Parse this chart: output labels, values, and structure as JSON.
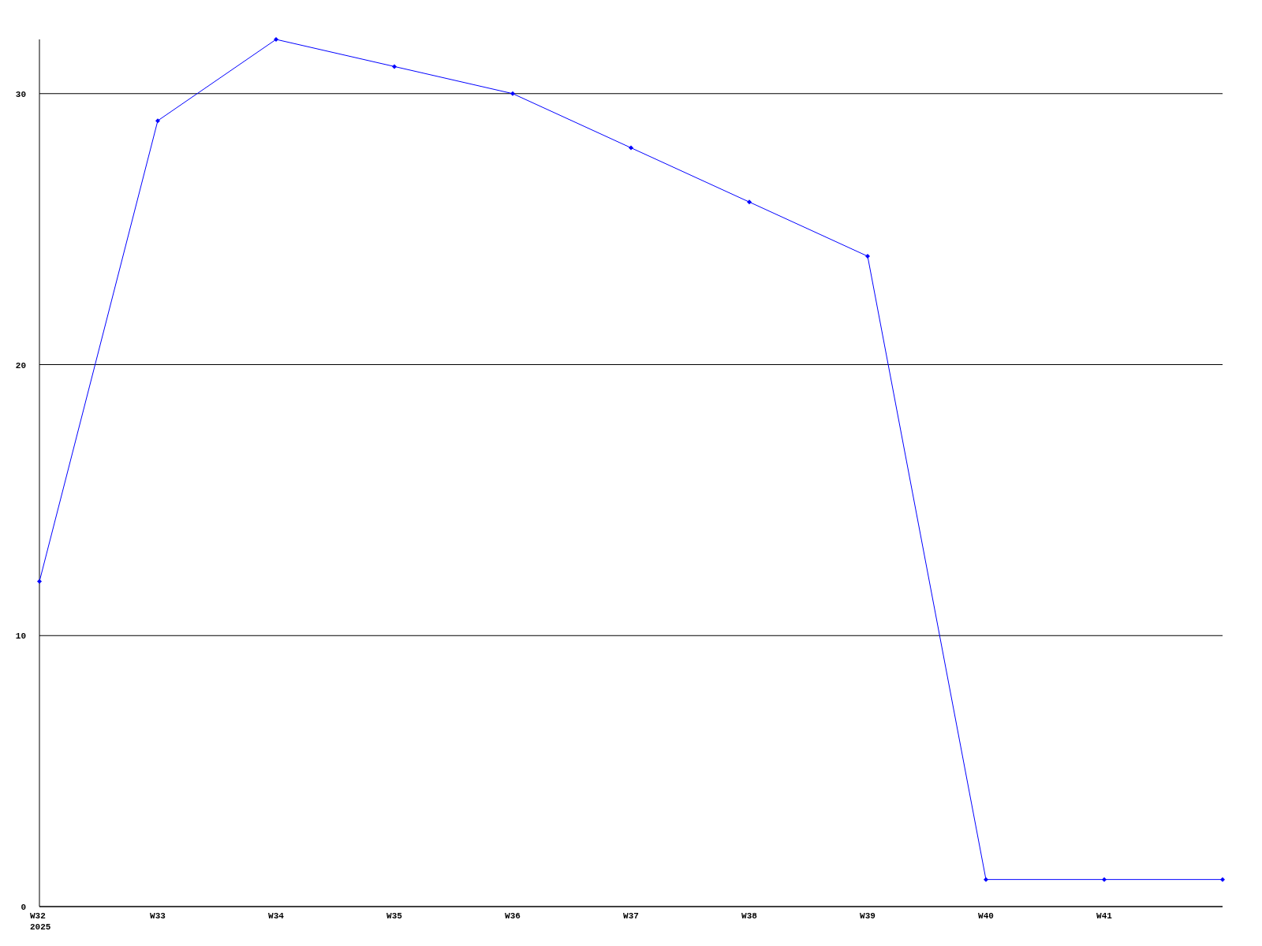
{
  "chart_data": {
    "type": "line",
    "categories": [
      "W32\n2025",
      "W33",
      "W34",
      "W35",
      "W36",
      "W37",
      "W38",
      "W39",
      "W40",
      "W41",
      null
    ],
    "series": [
      {
        "color": "#0000ff",
        "values": [
          12,
          29,
          32,
          31,
          30,
          28,
          26,
          24,
          1,
          1,
          1
        ]
      }
    ],
    "ylim": [
      0,
      32
    ],
    "yticks": [
      0,
      10,
      20,
      30
    ],
    "grid": "y",
    "marker": "diamond",
    "line_style": "solid"
  }
}
